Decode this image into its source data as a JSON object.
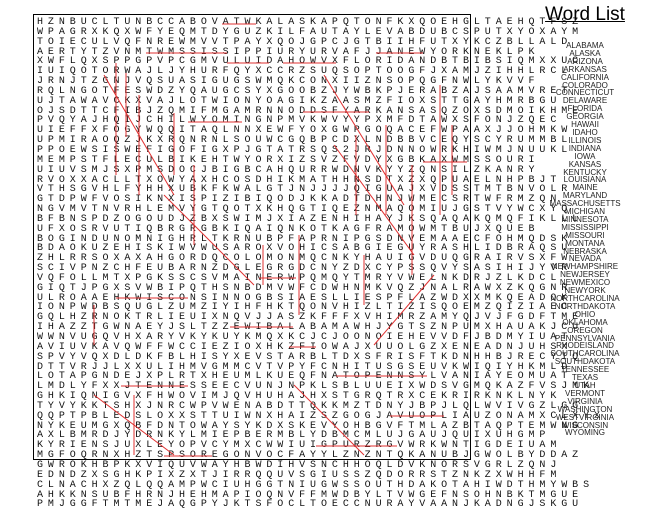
{
  "title": "Word List",
  "grid_rows": [
    "HZNBUCLTUNBCCABOVATWKALASKAPQTONFKXQOEHGLTAEHQTFSZ",
    "WPAGRXKQXWFYEQMTDYGUZKILFAUTAYLEVABDUBCSPUTXYOXAYM",
    "TOIECULVQFNREWMVVTPAYXQOJGPCJGTBIIHFUTXYKCZBLLALD",
    "AERTYTZVNMTWMSSISSIPPIURYURVAFJJANEWYORKNEKLPK",
    "XWFLQXSPPGPVPCGMVULUIDAHOWVXFLORIDANDBTBIBSIQMXXUC",
    "IUIQOTORWAJLJYHURFQYXCCRZSUQSOPTOOGFJXAMJZIHHLRCL",
    "JRNJTZGNJVQSUASIGUGSWMQKCONXIIZNSOPQGFNWLYKVVF",
    "RQLNGOTFESWDZYQAUGCSYXGOOBZJYWBKPJERABZAJSAAMVRET",
    "UJTAWAVCKXVAJLOTWIONYOAGIKZAASMZFIOXSTTGAYHMRBGU",
    "OJSDTTCFIBJZQMIFMGAMRNNODDSFYARKANSASQZOXSDMOIKHME",
    "PVQYAJHQIJCHILWYOMINGNPMVKWVYYPXMFDTAWXSFONJZQEC",
    "UIEFFXFOGYWQQITAQLNNXEWFYOXGWPGOQACEFWPAAXJJOHMKW",
    "UPMIRAOQZJKXRQNRNLSOUWCGQBPCDXLNDBBVCEQYSCYRUMMBL",
    "PPOEWSISWEFIGOFIGXPJGTATRSQS2JRJDNNOWRKHIWMJNUUKL",
    "MEMPSTFLECULBIKEHTWYORXIZSVZFVDYXGBKAXWMSSOURI",
    "UIUVSMJSXPMSDOCJBIGBCAHQURRWDNVKYYZQNSILZKANRY",
    "RVOXXACLLTXOWYAXHCOSDHIKMATHHNSDTXZXQPUAELNHPBJT",
    "VTHSGVHLFYHHXUBKFKWALGTJNJJJJQIGUAJXVDSSTMTBNVOLR",
    "GTDPWFVOSIKNXISPIZIBIQODJKKADTDHNJWMECSRTWFRMZQN",
    "NGVMVTNVRHLEMVYGTQOTXKHQGTIQEZNMAQOMIUJGSTVYWCXYQ",
    "BFBNSPDZOGOUDJZBXSWIMJXIAZENHIHAYJKSQAQAKQMQFIKLLL",
    "UFXOSRVUTIQBRGRGBKIQAIQNKOTKAGFRAMOWMTBUJXQUEB",
    "BOGINDUNOMNIGHRLTKRNUBPFAPRNIPGSDNVEMAAECFOHMQDSK",
    "BDAOKUZEHISKIWVWUSAROXVOHICSABGIEGUYRASHLIDBRAQSU",
    "ZHLRRSOXAXAHGORDQCOLOMONMQCNKYHAUIGVDUQGRAIRVSXFW",
    "SCIVPNZCHFEUBARNZDGLEGRGDCNYZDXCYPSSQVYSASIHIJYVR",
    "VQFOLLMTXPGKSSCSVMAINERWPQMQYTMRYVWELNKDRJZLKDCL",
    "GIQTJPGXSVWBIPQTHSNBDMVWFCDWHNMKVQZJNALRAWXZKQGNR",
    "ULROAAEHKWISCONSINNOGBSIAESLLIESPFLAZWDXXMKQEADOK",
    "IONPWDBSQUGLZUMZIYIHFHKTQONVHIZLTIZISQOEMZQIZIAEC",
    "GQLHZRNOKTRLIEUIXNQVJJASZKFFFXVHIMRZAMYQJVJFGDFTME",
    "IHAZZTGWNAEYJSLTZZEWIBALABAMAWHJYGTSZNPUMXHAUAKJCU",
    "WWNVUGQVHXARYVKYKUYKMQXKCJCJOONOIEHEVVDFJBDMYIUAT",
    "AVIUVKAVQWFFWCCIEZIOXHKZFIOWAJXUUOLGZXENEADNJUHSX",
    "SPVYVQXDLDKFBLHISYXEVSTARBLTDXSFRISFTKDNHHBJRECYIQ",
    "DTTVRJJLXXULIHMVGMMCVTVPYFCNHITUSGSEUVKWIQIYHKMLD",
    "LOTAPGNDEJXPLRTXHEUMLKUEQFNATOPENNSYLVANIAYEOMUAT",
    "LMDLYFXXJTENNESSEECVUNJNPKLSBLUUEIXWDSVGMQKAZFVSJMK",
    "GHKIQNIGVXFHWOVIMJQVHUHAJHXSTGRQTRXCEKRIRKNKLNYK",
    "TYVYKKTSHXJNRCWPVWENABDTTQKKMZTDNYJBPJLQLWVIVGZLGG",
    "QQPTPBLEDSLOXXSTTUIWNXHAIZSZGOGJAVUOPLIAUZONAMXCLXYX",
    "NYKEUMGXQBFDNTOWAYSYKDXSKEVYOHBGVFTMLAZBTAQPTEMWNG",
    "AXLBMRDJYDRNKYLMIEPBERMBLYDBMCMLUJGAUJQUIXUHGMP",
    "KYRIENSJUXLEYOPVCYMXCWWIUIGPURZRGVWRKWNTIGDEIUAM",
    "MGFOQRNXHZTSPSOREGONVOCFAYYLZNZNTQKANUBJGWOLBYDDAZ",
    "GWROKHBPKXVIQUVWAYHBWDIHVSNCHHOQLDVKNORSVGRLZQNJ",
    "EDNDZXSGHKPIXZXTJIRRQQUVSGIUSSZQDORRSTZNKZXWHHFM",
    "CLNACHXZQLQQAMPWCIUHGGTNIUGWSSOUTHDAKOTAHIWDTHMYWBS",
    "AHKKNSUBFHRNJHEHMAPIOQNVFFMWDBYLTVWGEFNSOHNBKTMGUE",
    "PMJGGFTMTMEJAQGPYJKTSFOCLTOECCNURAYVAANJKADNGJSKGU"
  ],
  "found_words": [
    "ALASKA",
    "MISSISSIPPI",
    "NEWYORK",
    "IDAHO",
    "FLORIDA",
    "WYOMING",
    "ARKANSAS",
    "MISSOURI",
    "OREGON",
    "WISCONSIN",
    "ALABAMA",
    "IOWA",
    "PENNSYLVANIA",
    "TENNESSEE",
    "ARIZONA",
    "SOUTHDAKOTA",
    "MAINE"
  ],
  "words": [
    "ALABAMA",
    "ALASKA",
    "ARIZONA",
    "ARKANSAS",
    "CALIFORNIA",
    "COLORADO",
    "CONNECTICUT",
    "DELAWARE",
    "FLORIDA",
    "GEORGIA",
    "HAWAII",
    "IDAHO",
    "ILLINOIS",
    "INDIANA",
    "IOWA",
    "KANSAS",
    "KENTUCKY",
    "LOUISIANA",
    "MAINE",
    "MARYLAND",
    "MASSACHUSETTS",
    "MICHIGAN",
    "MINNESOTA",
    "MISSISSIPPI",
    "MISSOURI",
    "MONTANA",
    "NEBRASKA",
    "NEVADA",
    "NEWHAMPSHIRE",
    "NEWJERSEY",
    "NEWMEXICO",
    "NEWYORK",
    "NORTHCAROLINA",
    "NORTHDAKOTA",
    "OHIO",
    "OKLAHOMA",
    "OREGON",
    "PENNSYLVANIA",
    "RHODEISLAND",
    "SOUTHCAROLINA",
    "SOUTHDAKOTA",
    "TENNESSEE",
    "TEXAS",
    "UTAH",
    "VERMONT",
    "VIRGINIA",
    "WASHINGTON",
    "WESTVIRGINIA",
    "WISCONSIN",
    "WYOMING"
  ]
}
